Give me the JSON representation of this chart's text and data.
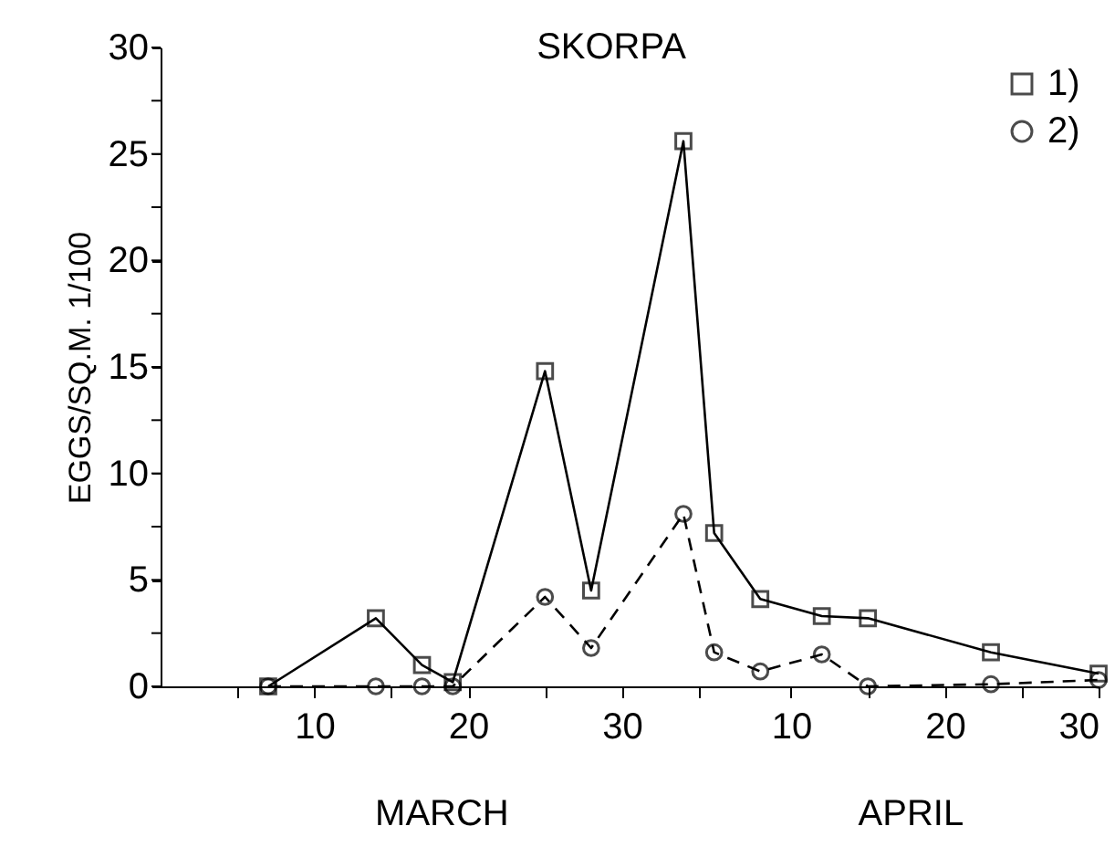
{
  "chart_data": {
    "type": "line",
    "title": "SKORPA",
    "ylabel": "EGGS/SQ.M. 1/100",
    "annotations": [
      "MARCH",
      "APRIL"
    ],
    "xlim": [
      "--02-28",
      "--04-30"
    ],
    "ylim": [
      0,
      30
    ],
    "xticks": [
      {
        "value": "--03-05",
        "label": null
      },
      {
        "value": "--03-10",
        "label": "10"
      },
      {
        "value": "--03-15",
        "label": null
      },
      {
        "value": "--03-20",
        "label": "20"
      },
      {
        "value": "--03-25",
        "label": null
      },
      {
        "value": "--03-30",
        "label": "30"
      },
      {
        "value": "--04-04",
        "label": null
      },
      {
        "value": "--04-10",
        "label": "10"
      },
      {
        "value": "--04-15",
        "label": null
      },
      {
        "value": "--04-20",
        "label": "20"
      },
      {
        "value": "--04-25",
        "label": null
      },
      {
        "value": "--04-30",
        "label": "30"
      }
    ],
    "yticks": [
      0,
      {
        "value": 2.5,
        "label": null
      },
      5,
      {
        "value": 7.5,
        "label": null
      },
      10,
      {
        "value": 12.5,
        "label": null
      },
      15,
      {
        "value": 17.5,
        "label": null
      },
      20,
      {
        "value": 22.5,
        "label": null
      },
      25,
      {
        "value": 27.5,
        "label": null
      },
      30
    ],
    "grid": false,
    "legend": "top right",
    "series": [
      {
        "name": "1)",
        "color": "#000000",
        "marker": "square",
        "line_style": "solid",
        "x": [
          "--03-07",
          "--03-14",
          "--03-17",
          "--03-19",
          "--03-25",
          "--03-28",
          "--04-03",
          "--04-05",
          "--04-08",
          "--04-12",
          "--04-15",
          "--04-23",
          "--04-30"
        ],
        "values": [
          0,
          3.2,
          1.0,
          0.2,
          14.8,
          4.5,
          25.6,
          7.2,
          4.1,
          3.3,
          3.2,
          1.6,
          0.6
        ]
      },
      {
        "name": "2)",
        "color": "#000000",
        "marker": "circle",
        "line_style": "dashed",
        "x": [
          "--03-07",
          "--03-14",
          "--03-17",
          "--03-19",
          "--03-25",
          "--03-28",
          "--04-03",
          "--04-05",
          "--04-08",
          "--04-12",
          "--04-15",
          "--04-23",
          "--04-30"
        ],
        "values": [
          0,
          0,
          0,
          0,
          4.2,
          1.8,
          8.1,
          1.6,
          0.7,
          1.5,
          0,
          0.1,
          0.3
        ]
      }
    ]
  }
}
